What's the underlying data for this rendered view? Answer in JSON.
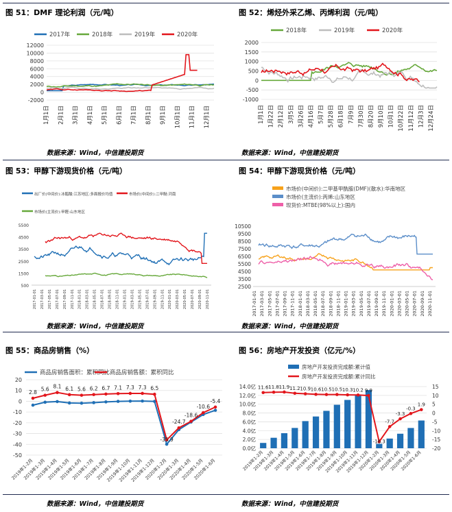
{
  "source_text": "数据来源：Wind，中信建投期货",
  "colors": {
    "blue": "#1f6fb5",
    "green": "#66a83a",
    "gray": "#bdbdbd",
    "red": "#e2151b",
    "orange": "#f7a21b",
    "lightblue": "#5b8ec9",
    "pink": "#ee5fa8",
    "rule": "#1f2a4e"
  },
  "charts": [
    {
      "title": "图 51：DMF 理论利润（元/吨）",
      "chart_data": {
        "type": "line",
        "legend": "top",
        "series": [
          {
            "name": "2017年",
            "color": "#1f6fb5"
          },
          {
            "name": "2018年",
            "color": "#66a83a"
          },
          {
            "name": "2019年",
            "color": "#bdbdbd"
          },
          {
            "name": "2020年",
            "color": "#e2151b"
          }
        ],
        "yticks": [
          "12000",
          "10000",
          "8000",
          "6000",
          "4000",
          "2000",
          "0",
          "-2000"
        ],
        "ylim": [
          -2000,
          12000
        ],
        "xticks": [
          "1月1日",
          "2月1日",
          "3月1日",
          "4月1日",
          "5月1日",
          "6月1日",
          "7月1日",
          "8月1日",
          "9月1日",
          "10月1日",
          "11月1日",
          "12月1日"
        ]
      }
    },
    {
      "title": "图 52：烯烃外采乙烯、丙烯利润（元/吨）",
      "chart_data": {
        "type": "line",
        "legend": "top",
        "series": [
          {
            "name": "2018年",
            "color": "#66a83a"
          },
          {
            "name": "2019年",
            "color": "#bdbdbd"
          },
          {
            "name": "2020年",
            "color": "#e2151b"
          }
        ],
        "yticks": [
          "2000",
          "1500",
          "1000",
          "500",
          "0",
          "-500",
          "-1000"
        ],
        "ylim": [
          -1000,
          2000
        ],
        "xticks": [
          "1月1日",
          "1月22日",
          "2月12日",
          "3月5日",
          "3月26日",
          "4月16日",
          "5月7日",
          "5月28日",
          "6月18日",
          "7月9日",
          "7月30日",
          "8月20日",
          "9月10日",
          "10月1日",
          "10月22日",
          "11月12日",
          "12月3日",
          "12月24日"
        ]
      }
    },
    {
      "title": "图 53：甲醇下游现货价格（元/吨）",
      "chart_data": {
        "type": "line",
        "legend": "top",
        "series": [
          {
            "name": "出厂价(中间价):冰醋酸:江苏地区:多面报价均值",
            "color": "#1f6fb5"
          },
          {
            "name": "市场价(中间价):二甲醚:河南",
            "color": "#e2151b"
          },
          {
            "name": "市场价(主流价):甲醛:山东地区",
            "color": "#66a83a"
          }
        ],
        "yticks": [
          "5500",
          "4500",
          "3500",
          "2500",
          "1500",
          "500"
        ],
        "ylim": [
          500,
          5500
        ],
        "xticks": [
          "2017-01-01",
          "2017-03-01",
          "2017-05-01",
          "2017-07-01",
          "2017-09-01",
          "2017-11-01",
          "2018-01-01",
          "2018-03-01",
          "2018-05-01",
          "2018-07-01",
          "2018-09-01",
          "2018-11-01",
          "2019-01-01",
          "2019-03-01",
          "2019-05-01",
          "2019-07-01",
          "2019-09-01",
          "2019-11-01",
          "2020-01-01",
          "2020-03-01",
          "2020-05-01",
          "2020-07-01",
          "2020-09-01",
          "2020-11-01"
        ]
      }
    },
    {
      "title": "图 54：甲醇下游现货价格（元/吨）",
      "chart_data": {
        "type": "line",
        "legend": "top-left",
        "series": [
          {
            "name": "市场价(中间价):二甲基甲酰胺(DMF)(散水):华南地区",
            "color": "#f7a21b"
          },
          {
            "name": "市场价(主流价):丙烯:山东地区",
            "color": "#5b8ec9"
          },
          {
            "name": "现货价:MTBE(98%以上):国内",
            "color": "#ee5fa8"
          }
        ],
        "yticks": [
          "10500",
          "9500",
          "8500",
          "7500",
          "6500",
          "5500",
          "4500",
          "3500",
          "2500"
        ],
        "ylim": [
          2500,
          10500
        ],
        "xticks": [
          "2017-01-01",
          "2017-03-01",
          "2017-05-01",
          "2017-07-01",
          "2017-09-01",
          "2017-11-01",
          "2018-01-01",
          "2018-03-01",
          "2018-05-01",
          "2018-07-01",
          "2018-09-01",
          "2018-11-01",
          "2019-01-01",
          "2019-03-01",
          "2019-05-01",
          "2019-07-01",
          "2019-09-01",
          "2019-11-01",
          "2020-01-01",
          "2020-03-01",
          "2020-05-01",
          "2020-07-01",
          "2020-09-01",
          "2020-11-01"
        ]
      }
    },
    {
      "title": "图 55：商品房销售（%）",
      "chart_data": {
        "type": "line",
        "legend": "top",
        "categories": [
          "2019年1-2月",
          "2019年1-3月",
          "2019年1-4月",
          "2019年1-5月",
          "2019年1-6月",
          "2019年1-7月",
          "2019年1-8月",
          "2019年1-9月",
          "2019年1-10月",
          "2019年1-11月",
          "2019年1-12月",
          "2020年1-2月",
          "2020年1-3月",
          "2020年1-4月",
          "2020年1-5月",
          "2020年1-6月"
        ],
        "series": [
          {
            "name": "商品房销售面积：累积同比",
            "color": "#1f6fb5",
            "values": [
              -3.6,
              -0.9,
              -0.3,
              -1.6,
              -1.8,
              -1.3,
              -0.6,
              -0.1,
              0.1,
              0.2,
              -0.1,
              -39.9,
              -26.3,
              -19.3,
              -12.3,
              -8.4
            ]
          },
          {
            "name": "商品房销售额：累积同比",
            "color": "#e2151b",
            "values": [
              2.8,
              5.6,
              8.1,
              6.1,
              5.6,
              6.2,
              6.7,
              7.1,
              7.3,
              7.3,
              6.5,
              -35.9,
              -24.7,
              -18.6,
              -10.6,
              -5.4
            ]
          }
        ],
        "labels": [
          "2.8",
          "5.6",
          "8.1",
          "6.1",
          "5.6",
          "6.2",
          "6.7",
          "7.1",
          "7.3",
          "7.3",
          "6.5",
          "-35.9",
          "-24.7",
          "-18.6",
          "-10.6",
          "-5.4"
        ],
        "ylim": [
          -50,
          20
        ],
        "yticks": [
          "20",
          "10",
          "0",
          "-10",
          "-20",
          "-30",
          "-40",
          "-50"
        ]
      }
    },
    {
      "title": "图 56：房地产开发投资（亿元/%）",
      "chart_data": {
        "type": "bar",
        "legend": "top",
        "categories": [
          "2019年1-2月",
          "2019年1-3月",
          "2019年1-4月",
          "2019年1-5月",
          "2019年1-6月",
          "2019年1-7月",
          "2019年1-8月",
          "2019年1-9月",
          "2019年1-10月",
          "2019年1-11月",
          "2019年1-12月",
          "2020年1-2月",
          "2020年1-3月",
          "2020年1-4月",
          "2020年1-5月",
          "2020年1-6月"
        ],
        "series": [
          {
            "name": "房地产开发投资完成额:累计值",
            "color": "#1f6fb5",
            "type": "bar",
            "values": [
              1.21,
              2.38,
              3.42,
              4.61,
              6.16,
              7.21,
              8.49,
              9.87,
              10.97,
              12.13,
              13.22,
              1.0,
              2.2,
              3.3,
              4.6,
              6.3
            ]
          },
          {
            "name": "房地产开发投资完成额:累计同比",
            "color": "#e2151b",
            "type": "line",
            "values": [
              11.6,
              11.8,
              11.9,
              11.2,
              10.9,
              10.6,
              10.5,
              10.5,
              10.3,
              10.2,
              9.9,
              -16.3,
              -7.7,
              -3.3,
              -0.3,
              1.9
            ]
          }
        ],
        "labels": [
          "11.6",
          "11.8",
          "11.9",
          "11.2",
          "10.9",
          "10.6",
          "10.5",
          "10.5",
          "10.3",
          "10.2",
          "9.9",
          "-16.3",
          "-7.7",
          "-3.3",
          "-0.3",
          "1.9"
        ],
        "yticks_left": [
          "14.0亿",
          "12.0亿",
          "10.0亿",
          "8.0亿",
          "6.0亿",
          "4.0亿",
          "2.0亿",
          "0.0亿"
        ],
        "yticks_right": [
          "15",
          "10",
          "5",
          "0",
          "-5",
          "-10",
          "-15",
          "-20"
        ],
        "ylim_left": [
          0,
          14
        ],
        "ylim_right": [
          -20,
          15
        ]
      }
    }
  ]
}
